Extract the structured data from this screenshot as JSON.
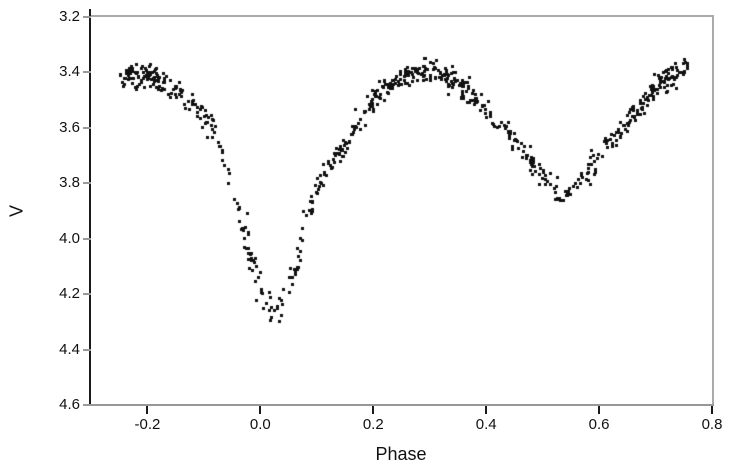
{
  "chart_data": {
    "type": "scatter",
    "title": "",
    "xlabel": "Phase",
    "ylabel": "V",
    "grid": false,
    "legend": null,
    "background_color": "#ffffff",
    "x_axis": {
      "min": -0.3,
      "max": 0.8,
      "ticks": [
        -0.2,
        0.0,
        0.2,
        0.4,
        0.6,
        0.8
      ],
      "tick_labels": [
        "-0.2",
        "0.0",
        "0.2",
        "0.4",
        "0.6",
        "0.8"
      ]
    },
    "y_axis": {
      "min": 3.2,
      "max": 4.6,
      "inverted": true,
      "ticks": [
        3.2,
        3.4,
        3.6,
        3.8,
        4.0,
        4.2,
        4.4,
        4.6
      ],
      "tick_labels": [
        "3.2",
        "3.4",
        "3.6",
        "3.8",
        "4.0",
        "4.2",
        "4.4",
        "4.6"
      ]
    },
    "style": {
      "marker_shape": "square",
      "marker_size_px": 3,
      "marker_color": "#111111",
      "axis_left_color": "#1a1a1a",
      "axis_bottom_color": "#979797",
      "frame_top_right_color": "#aaaaaa",
      "x_tick_color": "#1a1a1a",
      "y_tick_color": "#9a9a9a",
      "text_color": "#111111"
    },
    "series": [
      {
        "name": "V",
        "phase_range": [
          -0.252,
          0.757
        ],
        "mean_curve": [
          [
            -0.252,
            3.41
          ],
          [
            -0.225,
            3.4
          ],
          [
            -0.2,
            3.41
          ],
          [
            -0.175,
            3.43
          ],
          [
            -0.15,
            3.46
          ],
          [
            -0.125,
            3.5
          ],
          [
            -0.1,
            3.55
          ],
          [
            -0.08,
            3.62
          ],
          [
            -0.065,
            3.71
          ],
          [
            -0.05,
            3.82
          ],
          [
            -0.035,
            3.93
          ],
          [
            -0.02,
            4.04
          ],
          [
            -0.005,
            4.15
          ],
          [
            0.01,
            4.23
          ],
          [
            0.025,
            4.28
          ],
          [
            0.04,
            4.26
          ],
          [
            0.055,
            4.16
          ],
          [
            0.07,
            4.03
          ],
          [
            0.085,
            3.91
          ],
          [
            0.1,
            3.82
          ],
          [
            0.115,
            3.76
          ],
          [
            0.135,
            3.7
          ],
          [
            0.155,
            3.64
          ],
          [
            0.175,
            3.57
          ],
          [
            0.2,
            3.5
          ],
          [
            0.225,
            3.45
          ],
          [
            0.25,
            3.42
          ],
          [
            0.275,
            3.4
          ],
          [
            0.3,
            3.39
          ],
          [
            0.325,
            3.41
          ],
          [
            0.35,
            3.44
          ],
          [
            0.375,
            3.48
          ],
          [
            0.4,
            3.53
          ],
          [
            0.425,
            3.59
          ],
          [
            0.45,
            3.65
          ],
          [
            0.475,
            3.72
          ],
          [
            0.5,
            3.78
          ],
          [
            0.52,
            3.83
          ],
          [
            0.54,
            3.84
          ],
          [
            0.56,
            3.8
          ],
          [
            0.58,
            3.75
          ],
          [
            0.6,
            3.7
          ],
          [
            0.625,
            3.64
          ],
          [
            0.65,
            3.59
          ],
          [
            0.67,
            3.54
          ],
          [
            0.69,
            3.47
          ],
          [
            0.71,
            3.43
          ],
          [
            0.73,
            3.41
          ],
          [
            0.757,
            3.39
          ]
        ],
        "primary_minimum": {
          "phase": 0.02,
          "V": 4.3
        },
        "secondary_minimum": {
          "phase": 0.53,
          "V": 3.84
        },
        "maxima_V": 3.4,
        "noise_sigma_mag": 0.021,
        "noise_regions": [
          {
            "range": [
              -0.03,
              0.08
            ],
            "sigma": 0.042
          },
          {
            "range": [
              0.45,
              0.63
            ],
            "sigma": 0.026
          }
        ],
        "n_points": 720,
        "point_distribution": {
          "uniform": 560,
          "extra_clusters": [
            {
              "range": [
                -0.252,
                -0.17
              ],
              "n": 45
            },
            {
              "range": [
                0.19,
                0.38
              ],
              "n": 65
            },
            {
              "range": [
                0.62,
                0.757
              ],
              "n": 50
            }
          ]
        },
        "random_seed": 20240607
      }
    ]
  }
}
